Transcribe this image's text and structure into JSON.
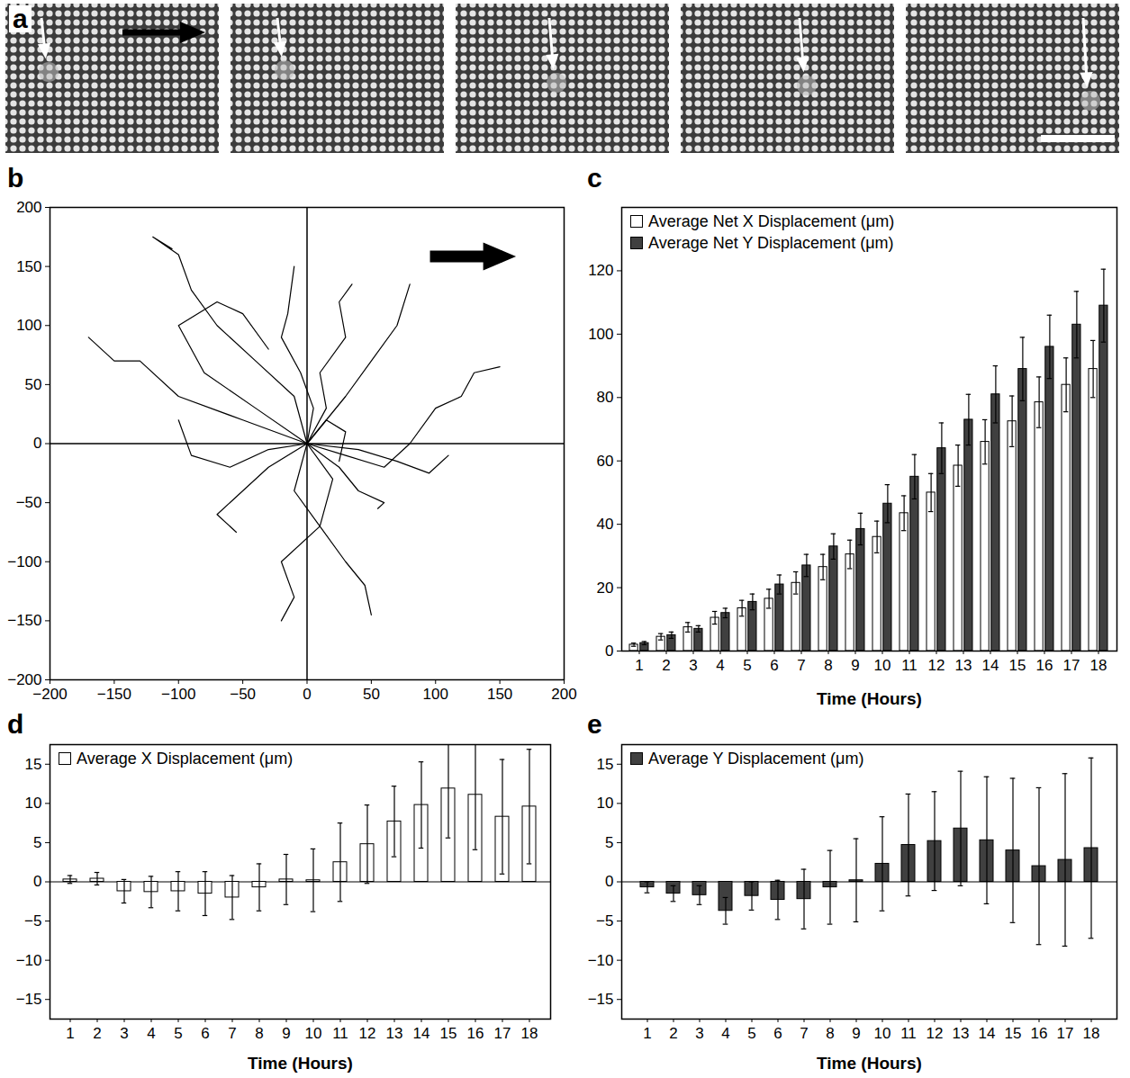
{
  "chart_data": [
    {
      "type": "image",
      "panel": "a"
    },
    {
      "type": "line",
      "panel": "b",
      "color": "#000000",
      "xlim": [
        -200,
        200
      ],
      "ylim": [
        -200,
        200
      ],
      "xticks": [
        -200,
        -150,
        -100,
        -50,
        0,
        50,
        100,
        150,
        200
      ],
      "yticks": [
        -200,
        -150,
        -100,
        -50,
        0,
        50,
        100,
        150,
        200
      ],
      "series": [
        {
          "x": [
            0,
            -10,
            -40,
            -70,
            -90,
            -100,
            -120,
            -105
          ],
          "y": [
            0,
            40,
            70,
            100,
            130,
            160,
            175,
            165
          ]
        },
        {
          "x": [
            0,
            5,
            -5,
            -20,
            -15,
            -10
          ],
          "y": [
            0,
            30,
            60,
            90,
            110,
            150
          ]
        },
        {
          "x": [
            0,
            15,
            10,
            30,
            25,
            35
          ],
          "y": [
            0,
            30,
            60,
            90,
            120,
            135
          ]
        },
        {
          "x": [
            0,
            30,
            60,
            80,
            100,
            120,
            130,
            150
          ],
          "y": [
            0,
            -10,
            -20,
            0,
            30,
            40,
            60,
            65
          ]
        },
        {
          "x": [
            0,
            40,
            70,
            95,
            110
          ],
          "y": [
            0,
            -5,
            -15,
            -25,
            -10
          ]
        },
        {
          "x": [
            0,
            -40,
            -80,
            -100,
            -70,
            -50,
            -30
          ],
          "y": [
            0,
            30,
            60,
            100,
            120,
            110,
            80
          ]
        },
        {
          "x": [
            0,
            -50,
            -100,
            -130,
            -150,
            -170
          ],
          "y": [
            0,
            20,
            40,
            70,
            70,
            90
          ]
        },
        {
          "x": [
            0,
            -10,
            10,
            -20,
            -10,
            -20
          ],
          "y": [
            0,
            -40,
            -70,
            -100,
            -130,
            -150
          ]
        },
        {
          "x": [
            0,
            20,
            10,
            30,
            45,
            50
          ],
          "y": [
            0,
            -30,
            -70,
            -100,
            -120,
            -145
          ]
        },
        {
          "x": [
            0,
            -30,
            -50,
            -70,
            -55
          ],
          "y": [
            0,
            -20,
            -40,
            -60,
            -75
          ]
        },
        {
          "x": [
            0,
            25,
            40,
            60,
            55
          ],
          "y": [
            0,
            -20,
            -40,
            -50,
            -55
          ]
        },
        {
          "x": [
            0,
            30,
            50,
            70,
            80
          ],
          "y": [
            0,
            40,
            70,
            100,
            135
          ]
        },
        {
          "x": [
            0,
            15,
            30,
            25
          ],
          "y": [
            0,
            20,
            10,
            -15
          ]
        },
        {
          "x": [
            0,
            -30,
            -60,
            -90,
            -100
          ],
          "y": [
            0,
            -5,
            -20,
            -10,
            20
          ]
        }
      ]
    },
    {
      "type": "bar",
      "panel": "c",
      "legend": "top-left",
      "x_label": "Time (Hours)",
      "categories": [
        "1",
        "2",
        "3",
        "4",
        "5",
        "6",
        "7",
        "8",
        "9",
        "10",
        "11",
        "12",
        "13",
        "14",
        "15",
        "16",
        "17",
        "18"
      ],
      "ylim": [
        0,
        140
      ],
      "yticks": [
        0,
        20,
        40,
        60,
        80,
        100,
        120
      ],
      "series": [
        {
          "name": "Average Net X Displacement (μm)",
          "color": "#ffffff",
          "values": [
            2,
            4.5,
            7.5,
            10.5,
            13.5,
            16.5,
            21.5,
            26.5,
            30.5,
            36,
            43.5,
            50,
            58.5,
            66,
            72.5,
            78.5,
            84,
            89
          ],
          "errors": [
            0.5,
            1,
            1.5,
            2,
            2.5,
            3,
            3.5,
            4,
            4.5,
            5,
            5.5,
            6,
            6.5,
            7,
            8,
            8,
            8.5,
            9
          ]
        },
        {
          "name": "Average Net Y Displacement (μm)",
          "color": "#404040",
          "values": [
            2.5,
            5,
            7,
            12,
            15.5,
            21,
            27,
            33,
            38.5,
            46.5,
            55,
            64,
            73,
            81,
            89,
            96,
            103,
            109
          ],
          "errors": [
            0.5,
            1,
            1,
            1.5,
            2.5,
            3,
            3.5,
            4,
            5,
            6,
            7,
            8,
            8,
            9,
            10,
            10,
            10.5,
            11.5
          ]
        }
      ]
    },
    {
      "type": "bar",
      "panel": "d",
      "legend": "top-left",
      "x_label": "Time (Hours)",
      "categories": [
        "1",
        "2",
        "3",
        "4",
        "5",
        "6",
        "7",
        "8",
        "9",
        "10",
        "11",
        "12",
        "13",
        "14",
        "15",
        "16",
        "17",
        "18"
      ],
      "ylim": [
        -17.5,
        17.5
      ],
      "yticks": [
        -15,
        -10,
        -5,
        0,
        5,
        10,
        15
      ],
      "series": [
        {
          "name": "Average X Displacement (μm)",
          "color": "#ffffff",
          "values": [
            0.3,
            0.4,
            -1.2,
            -1.3,
            -1.2,
            -1.5,
            -2,
            -0.7,
            0.3,
            0.2,
            2.5,
            4.8,
            7.7,
            9.8,
            11.9,
            11.1,
            8.3,
            9.6
          ],
          "errors": [
            0.5,
            0.8,
            1.5,
            2,
            2.5,
            2.8,
            2.8,
            3,
            3.2,
            4,
            5,
            5,
            4.5,
            5.5,
            6.3,
            7,
            7.3,
            7.3
          ]
        }
      ]
    },
    {
      "type": "bar",
      "panel": "e",
      "legend": "top-left",
      "x_label": "Time (Hours)",
      "categories": [
        "1",
        "2",
        "3",
        "4",
        "5",
        "6",
        "7",
        "8",
        "9",
        "10",
        "11",
        "12",
        "13",
        "14",
        "15",
        "16",
        "17",
        "18"
      ],
      "ylim": [
        -17.5,
        17.5
      ],
      "yticks": [
        -15,
        -10,
        -5,
        0,
        5,
        10,
        15
      ],
      "series": [
        {
          "name": "Average Y Displacement (μm)",
          "color": "#404040",
          "values": [
            -0.7,
            -1.5,
            -1.7,
            -3.7,
            -1.8,
            -2.3,
            -2.2,
            -0.7,
            0.2,
            2.3,
            4.7,
            5.2,
            6.8,
            5.3,
            4,
            2,
            2.8,
            4.3
          ],
          "errors": [
            0.7,
            1,
            1.2,
            1.7,
            1.8,
            2.5,
            3.8,
            4.7,
            5.3,
            6,
            6.5,
            6.3,
            7.3,
            8.1,
            9.2,
            10,
            11,
            11.5
          ]
        }
      ]
    }
  ]
}
